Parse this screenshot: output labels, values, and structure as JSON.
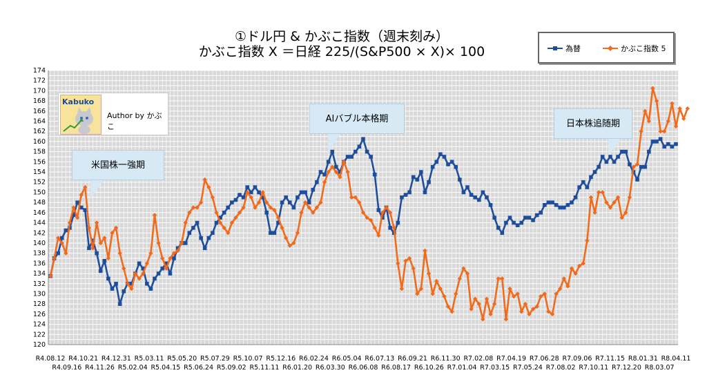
{
  "title": {
    "line1": "①ドル円 & かぶこ指数（週末刻み）",
    "line2": "かぶこ指数 X ＝日経 225/(S&P500 × X)× 100"
  },
  "legend": {
    "series1": "為替",
    "series2": "かぶこ指数 5"
  },
  "author": {
    "logo_text": "Kabuko",
    "text": "Author by かぶこ"
  },
  "annotations": {
    "us_strong": "米国株一強期",
    "ai_bubble": "AIバブル本格期",
    "japan_catchup": "日本株追随期"
  },
  "colors": {
    "fx": "#1f4e9c",
    "kabuko": "#f26a1b",
    "plot_bg": "#d8d8d8",
    "grid": "#ffffff",
    "callout": "#d6e9f5"
  },
  "chart_data": {
    "type": "line",
    "ylim": [
      120,
      174
    ],
    "ystep": 2,
    "x_ticks_top": [
      "R4.08.12",
      "R4.10.21",
      "R4.12.31",
      "R5.03.11",
      "R5.05.20",
      "R5.07.29",
      "R5.10.07",
      "R5.12.16",
      "R6.02.24",
      "R6.05.04",
      "R6.07.13",
      "R6.09.21",
      "R6.11.30",
      "R7.02.08",
      "R7.04.19",
      "R7.06.28",
      "R7.09.06",
      "R7.11.15",
      "R8.01.31",
      "R8.04.11"
    ],
    "x_ticks_bottom": [
      "R4.09.16",
      "R4.11.26",
      "R5.02.04",
      "R5.04.15",
      "R5.06.24",
      "R5.09.02",
      "R5.11.11",
      "R6.01.20",
      "R6.03.30",
      "R6.06.08",
      "R6.08.17",
      "R6.10.26",
      "R7.01.04",
      "R7.03.15",
      "R7.05.24",
      "R7.08.02",
      "R7.10.11",
      "R7.12.20",
      "R8.03.07"
    ],
    "series": [
      {
        "name": "為替",
        "values": [
          133.5,
          137,
          138,
          141,
          142.5,
          143,
          145.5,
          148,
          147,
          146.5,
          139,
          140.5,
          138,
          134.5,
          136.5,
          133,
          131,
          132,
          128,
          130.5,
          132,
          132,
          134,
          136,
          135,
          132,
          131,
          133,
          134,
          135,
          136,
          134,
          137,
          139,
          140,
          140,
          142,
          143,
          144,
          141,
          139,
          141,
          142,
          144,
          145,
          146,
          147,
          148,
          148.5,
          149.5,
          149,
          151,
          150,
          151,
          150,
          149,
          146,
          142,
          142,
          144,
          148,
          149,
          148,
          147,
          149,
          150,
          150,
          148,
          150.5,
          152,
          154,
          153.5,
          156,
          158,
          155,
          154,
          156,
          157,
          157,
          158,
          159,
          160.5,
          158,
          157,
          153.5,
          146.5,
          145,
          147,
          143,
          142,
          144,
          149,
          149.5,
          150,
          153,
          152.5,
          154,
          150,
          152,
          155,
          156,
          157.5,
          157,
          155.5,
          156,
          155,
          152.5,
          150,
          151,
          149.5,
          149,
          148.5,
          150,
          149,
          147.5,
          145,
          143,
          142,
          144,
          145,
          144,
          143.5,
          144,
          145,
          145,
          144.5,
          145.5,
          146,
          147.5,
          148,
          148,
          147.5,
          147,
          147,
          147.5,
          148,
          149,
          151,
          152,
          151,
          153,
          154,
          155,
          157,
          156,
          157,
          156,
          157,
          158,
          158,
          155.5,
          154,
          152.5,
          155,
          155,
          158,
          160,
          160,
          160.5,
          159,
          159.5,
          159,
          159.5
        ]
      },
      {
        "name": "かぶこ指数 5",
        "values": [
          133.5,
          137,
          141,
          140,
          138,
          144,
          147,
          145,
          149.5,
          151,
          143,
          139,
          144,
          140,
          141,
          137,
          142,
          143,
          138,
          135,
          132,
          131,
          134,
          133,
          134,
          136,
          138,
          145.5,
          140,
          137,
          135,
          137,
          138,
          138.5,
          140,
          144,
          146,
          147,
          147,
          148,
          152.5,
          151,
          149,
          146,
          144,
          143,
          142,
          144,
          145,
          146,
          147,
          150,
          149,
          147,
          148,
          150,
          148,
          147,
          146.5,
          145,
          143,
          141,
          139.5,
          140,
          142,
          146,
          148,
          147,
          146,
          147,
          148,
          152,
          154,
          155,
          154,
          153,
          156,
          154,
          149,
          149,
          148,
          146,
          145,
          144.5,
          143,
          141.5,
          146,
          147,
          146,
          143,
          136,
          131,
          136.5,
          137,
          135,
          130,
          131,
          138.5,
          134,
          130,
          132.5,
          131,
          129.5,
          127.5,
          126.5,
          130,
          133,
          135,
          134,
          127,
          129,
          128,
          125,
          129,
          126,
          128,
          133,
          133,
          125,
          131,
          129.5,
          130,
          126.5,
          128,
          126,
          127,
          127.5,
          129.5,
          130,
          126.5,
          126,
          130,
          131,
          133,
          131.5,
          135,
          134,
          135.5,
          136,
          140.5,
          149,
          146,
          150,
          150,
          148,
          147,
          148,
          149,
          145,
          146,
          149,
          155,
          155.5,
          162,
          166,
          164,
          170.5,
          168,
          162,
          162,
          164,
          167.5,
          163,
          166.5,
          164.5,
          166.5
        ]
      }
    ]
  }
}
